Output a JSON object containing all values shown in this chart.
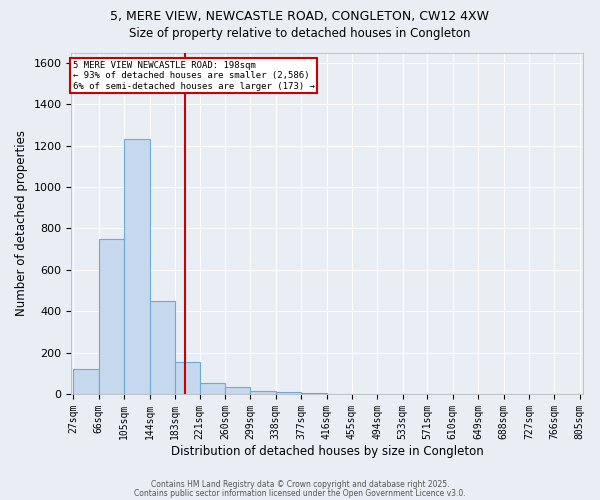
{
  "title_line1": "5, MERE VIEW, NEWCASTLE ROAD, CONGLETON, CW12 4XW",
  "title_line2": "Size of property relative to detached houses in Congleton",
  "xlabel": "Distribution of detached houses by size in Congleton",
  "ylabel": "Number of detached properties",
  "bin_labels": [
    "27sqm",
    "66sqm",
    "105sqm",
    "144sqm",
    "183sqm",
    "221sqm",
    "260sqm",
    "299sqm",
    "338sqm",
    "377sqm",
    "416sqm",
    "455sqm",
    "494sqm",
    "533sqm",
    "571sqm",
    "610sqm",
    "649sqm",
    "688sqm",
    "727sqm",
    "766sqm",
    "805sqm"
  ],
  "bin_edges": [
    27,
    66,
    105,
    144,
    183,
    221,
    260,
    299,
    338,
    377,
    416,
    455,
    494,
    533,
    571,
    610,
    649,
    688,
    727,
    766,
    805
  ],
  "bar_heights": [
    120,
    750,
    1230,
    450,
    155,
    55,
    35,
    15,
    10,
    5,
    0,
    0,
    0,
    0,
    0,
    0,
    0,
    0,
    0,
    0
  ],
  "bar_color": "#c5d8ee",
  "bar_edge_color": "#6aaad4",
  "property_size": 198,
  "vline_color": "#cc0000",
  "annotation_line1": "5 MERE VIEW NEWCASTLE ROAD: 198sqm",
  "annotation_line2": "← 93% of detached houses are smaller (2,586)",
  "annotation_line3": "6% of semi-detached houses are larger (173) →",
  "annotation_box_color": "#ffffff",
  "annotation_box_edge": "#cc0000",
  "ylim": [
    0,
    1650
  ],
  "yticks": [
    0,
    200,
    400,
    600,
    800,
    1000,
    1200,
    1400,
    1600
  ],
  "bg_color": "#e8eef4",
  "grid_color": "#ffffff",
  "footer_line1": "Contains HM Land Registry data © Crown copyright and database right 2025.",
  "footer_line2": "Contains public sector information licensed under the Open Government Licence v3.0."
}
